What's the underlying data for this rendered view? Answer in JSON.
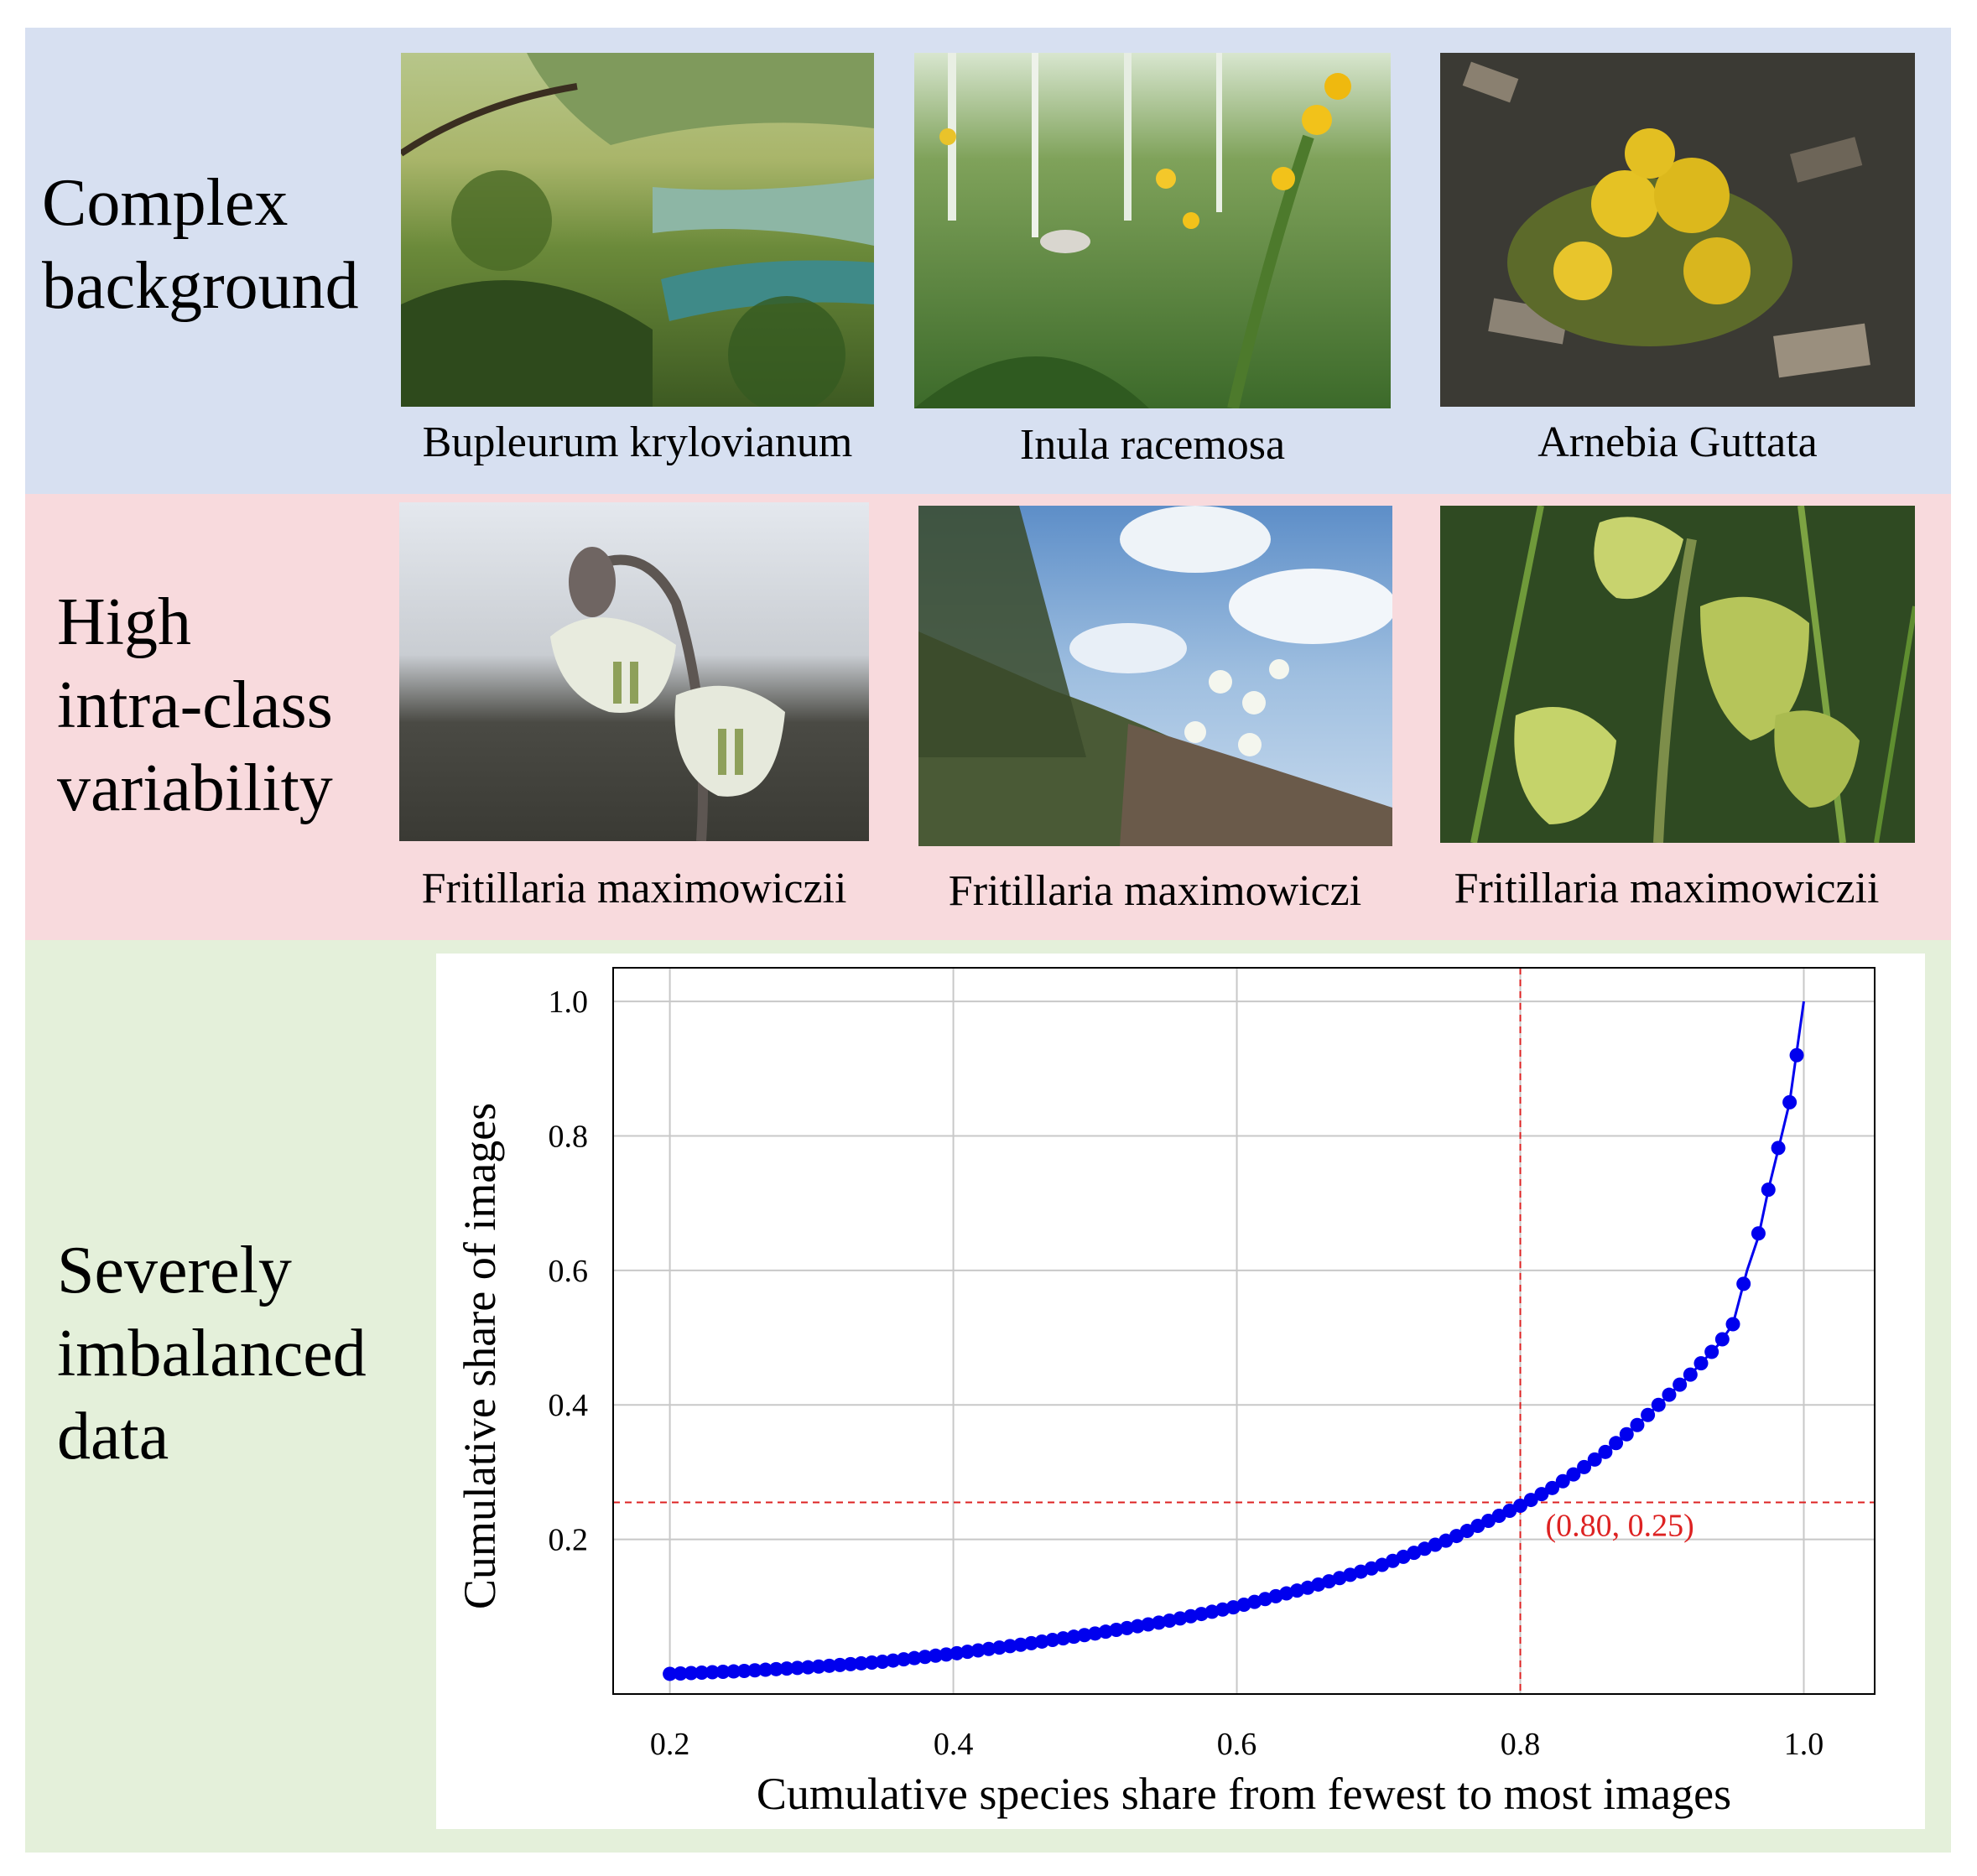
{
  "colors": {
    "band_complex": "#d7e0f1",
    "band_variability": "#f8dadd",
    "band_imbalanced": "#e4f0da",
    "curve": "#0000ee",
    "reference": "#dd2222"
  },
  "rows": [
    {
      "label": "Complex\nbackground",
      "images": [
        {
          "caption": "Bupleurum krylovianum"
        },
        {
          "caption": "Inula racemosa"
        },
        {
          "caption": "Arnebia Guttata"
        }
      ]
    },
    {
      "label": "High\nintra-class\nvariability",
      "images": [
        {
          "caption": "Fritillaria maximowiczii"
        },
        {
          "caption": "Fritillaria maximowiczi"
        },
        {
          "caption": "Fritillaria maximowiczii"
        }
      ]
    },
    {
      "label": "Severely\nimbalanced\ndata"
    }
  ],
  "chart_data": {
    "type": "line",
    "xlabel": "Cumulative species share from fewest to most images",
    "ylabel": "Cumulative share of images",
    "xlim": [
      0.16,
      1.05
    ],
    "ylim": [
      -0.03,
      1.05
    ],
    "xticks": [
      0.2,
      0.4,
      0.6,
      0.8,
      1.0
    ],
    "yticks": [
      0.2,
      0.4,
      0.6,
      0.8,
      1.0
    ],
    "xtick_labels": [
      "0.2",
      "0.4",
      "0.6",
      "0.8",
      "1.0"
    ],
    "ytick_labels": [
      "0.2",
      "0.4",
      "0.6",
      "0.8",
      "1.0"
    ],
    "grid": true,
    "series": [
      {
        "x": [
          0.2,
          0.25,
          0.3,
          0.35,
          0.4,
          0.45,
          0.5,
          0.55,
          0.6,
          0.65,
          0.7,
          0.75,
          0.8,
          0.82,
          0.84,
          0.86,
          0.88,
          0.9,
          0.92,
          0.94,
          0.95,
          0.96,
          0.968,
          0.975,
          0.982,
          0.99,
          1.0
        ],
        "y": [
          0.0,
          0.004,
          0.01,
          0.018,
          0.03,
          0.044,
          0.06,
          0.078,
          0.1,
          0.128,
          0.16,
          0.2,
          0.25,
          0.273,
          0.3,
          0.33,
          0.365,
          0.405,
          0.445,
          0.49,
          0.52,
          0.6,
          0.65,
          0.72,
          0.78,
          0.85,
          1.0
        ],
        "markers": [
          [
            0.968,
            0.655
          ],
          [
            0.975,
            0.72
          ],
          [
            0.982,
            0.782
          ],
          [
            0.99,
            0.85
          ],
          [
            0.995,
            0.92
          ]
        ]
      }
    ],
    "reference": {
      "x": 0.8,
      "y": 0.255
    },
    "annotation": "(0.80, 0.25)"
  }
}
